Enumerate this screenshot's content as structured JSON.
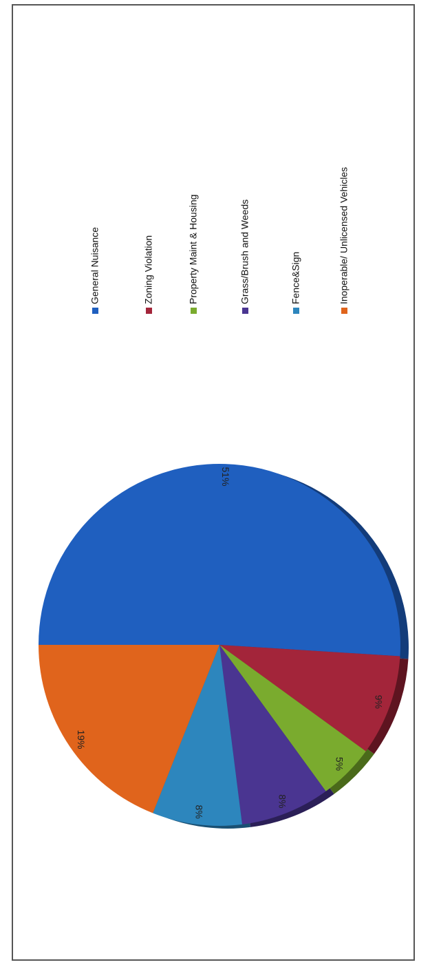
{
  "chart_data": {
    "type": "pie",
    "title": "",
    "orientation": "rotated-90",
    "legend_position": "right",
    "slices": [
      {
        "label": "General Nuisance",
        "value": 51,
        "display": "51%",
        "color": "#1f5fbf",
        "shade": "#133c7a"
      },
      {
        "label": "Zoning Violation",
        "value": 9,
        "display": "9%",
        "color": "#a3253a",
        "shade": "#5e1420"
      },
      {
        "label": "Property Maint & Housing",
        "value": 5,
        "display": "5%",
        "color": "#7aab2e",
        "shade": "#4a6a1a"
      },
      {
        "label": "Grass/Brush and Weeds",
        "value": 8,
        "display": "8%",
        "color": "#4a3591",
        "shade": "#2b1f57"
      },
      {
        "label": "Fence&Sign",
        "value": 8,
        "display": "8%",
        "color": "#2d86bd",
        "shade": "#1a5073"
      },
      {
        "label": "Inoperable/ Unlicensed Vehicles",
        "value": 19,
        "display": "19%",
        "color": "#e0641c",
        "shade": "#8a3c0f"
      }
    ]
  }
}
